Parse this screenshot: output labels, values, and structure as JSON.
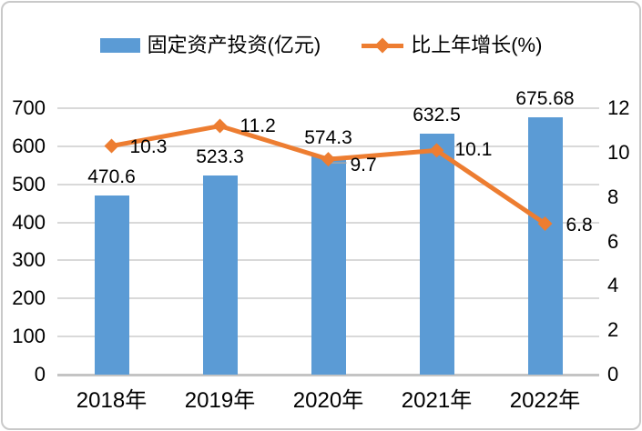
{
  "chart_data": {
    "type": "bar+line combo",
    "title": "",
    "categories": [
      "2018年",
      "2019年",
      "2020年",
      "2021年",
      "2022年"
    ],
    "series": [
      {
        "name": "固定资产投资(亿元)",
        "type": "bar",
        "axis": "left",
        "color": "#5B9BD5",
        "values": [
          470.6,
          523.3,
          574.3,
          632.5,
          675.68
        ],
        "labels": [
          "470.6",
          "523.3",
          "574.3",
          "632.5",
          "675.68"
        ]
      },
      {
        "name": "比上年增长(%)",
        "type": "line",
        "axis": "right",
        "color": "#ED7D31",
        "marker": "diamond",
        "values": [
          10.3,
          11.2,
          9.7,
          10.1,
          6.8
        ],
        "labels": [
          "10.3",
          "11.2",
          "9.7",
          "10.1",
          "6.8"
        ],
        "label_offsets": [
          [
            20,
            1
          ],
          [
            22,
            0
          ],
          [
            24,
            7
          ],
          [
            20,
            0
          ],
          [
            23,
            2
          ]
        ],
        "label_leader_index": 2
      }
    ],
    "left_axis": {
      "min": 0,
      "max": 700,
      "step": 100,
      "ticks": [
        "0",
        "100",
        "200",
        "300",
        "400",
        "500",
        "600",
        "700"
      ]
    },
    "right_axis": {
      "min": 0,
      "max": 12,
      "step": 2,
      "ticks": [
        "0",
        "2",
        "4",
        "6",
        "8",
        "10",
        "12"
      ]
    },
    "grid": true,
    "legend_position": "top"
  },
  "legend": {
    "items": [
      {
        "label": "固定资产投资(亿元)",
        "marker": "bar-swatch",
        "color": "#5B9BD5"
      },
      {
        "label": "比上年增长(%)",
        "marker": "line-diamond",
        "color": "#ED7D31"
      }
    ]
  },
  "colors": {
    "bar": "#5B9BD5",
    "line": "#ED7D31",
    "gridline": "#D9D9D9",
    "axis_line": "#C4C4C4",
    "leader_line": "#A6A6A6",
    "text": "#000000",
    "frame_border": "#C9C9C9"
  }
}
